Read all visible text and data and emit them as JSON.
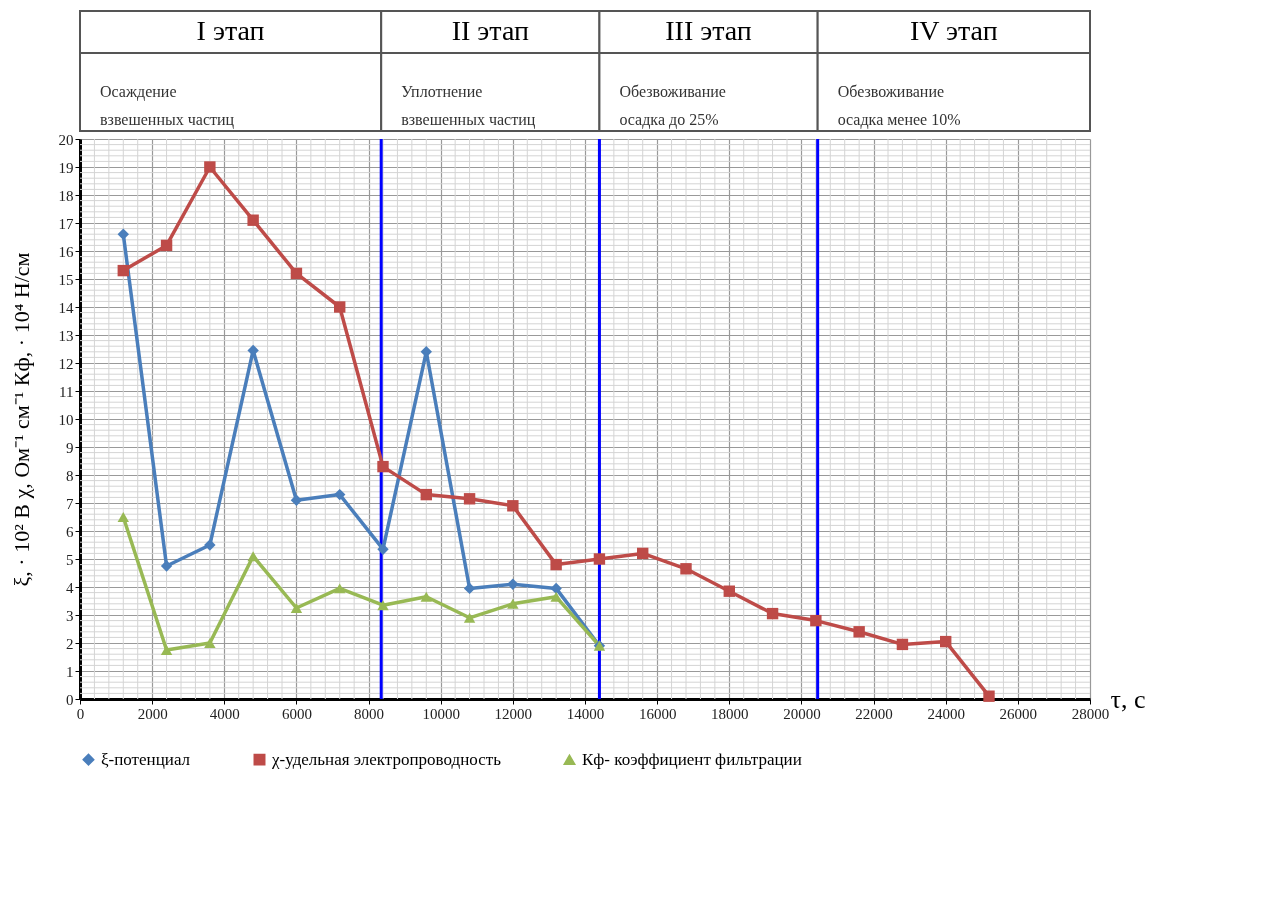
{
  "chart_data": {
    "type": "line",
    "xlabel": "τ, с",
    "ylabel": "ξ, · 10² В     χ, Ом⁻¹ см⁻¹     Кф, · 10⁴ Н/см",
    "annotations": [
      "I этап",
      "Осаждение взвешенных частиц",
      "II этап",
      "Уплотнение взвешенных частиц",
      "III этап",
      "Обезвоживание осадка до 25%",
      "IV этап",
      "Обезвоживание осадка менее 10%"
    ],
    "xlim": [
      0,
      28000
    ],
    "xticks": [
      0,
      2000,
      4000,
      6000,
      8000,
      10000,
      12000,
      14000,
      16000,
      18000,
      20000,
      22000,
      24000,
      26000,
      28000
    ],
    "ylim": [
      0,
      20
    ],
    "yticks": [
      0,
      1,
      2,
      3,
      4,
      5,
      6,
      7,
      8,
      9,
      10,
      11,
      12,
      13,
      14,
      15,
      16,
      17,
      18,
      19,
      20
    ],
    "grid": true,
    "legend": "bottom",
    "ref_lines": [
      {
        "axis": "x",
        "value": 8350,
        "color": "#0000ff"
      },
      {
        "axis": "x",
        "value": 14400,
        "color": "#0000ff"
      },
      {
        "axis": "x",
        "value": 20450,
        "color": "#0000ff"
      }
    ],
    "series": [
      {
        "name": "ξ-потенциал",
        "color": "#4a7ebb",
        "marker": "diamond",
        "x": [
          1200,
          2400,
          3600,
          4800,
          6000,
          7200,
          8400,
          9600,
          10800,
          12000,
          13200,
          14400
        ],
        "values": [
          16.6,
          4.75,
          5.5,
          12.45,
          7.1,
          7.3,
          5.35,
          12.4,
          3.95,
          4.1,
          3.95,
          1.9
        ]
      },
      {
        "name": "χ-удельная электропроводность",
        "color": "#be4b48",
        "marker": "square",
        "x": [
          1200,
          2400,
          3600,
          4800,
          6000,
          7200,
          8400,
          9600,
          10800,
          12000,
          13200,
          14400,
          15600,
          16800,
          18000,
          19200,
          20400,
          21600,
          22800,
          24000,
          25200
        ],
        "values": [
          15.3,
          16.2,
          19.0,
          17.1,
          15.2,
          14.0,
          8.3,
          7.3,
          7.15,
          6.9,
          4.8,
          5.0,
          5.2,
          4.65,
          3.85,
          3.05,
          2.8,
          2.4,
          1.95,
          2.05,
          0.1
        ]
      },
      {
        "name": "Кф- коэффициент фильтрации",
        "color": "#98b954",
        "marker": "triangle",
        "x": [
          1200,
          2400,
          3600,
          4800,
          6000,
          7200,
          8400,
          9600,
          10800,
          12000,
          13200,
          14400
        ],
        "values": [
          6.5,
          1.75,
          2.0,
          5.1,
          3.25,
          3.95,
          3.35,
          3.65,
          2.9,
          3.4,
          3.65,
          1.9
        ]
      }
    ]
  }
}
